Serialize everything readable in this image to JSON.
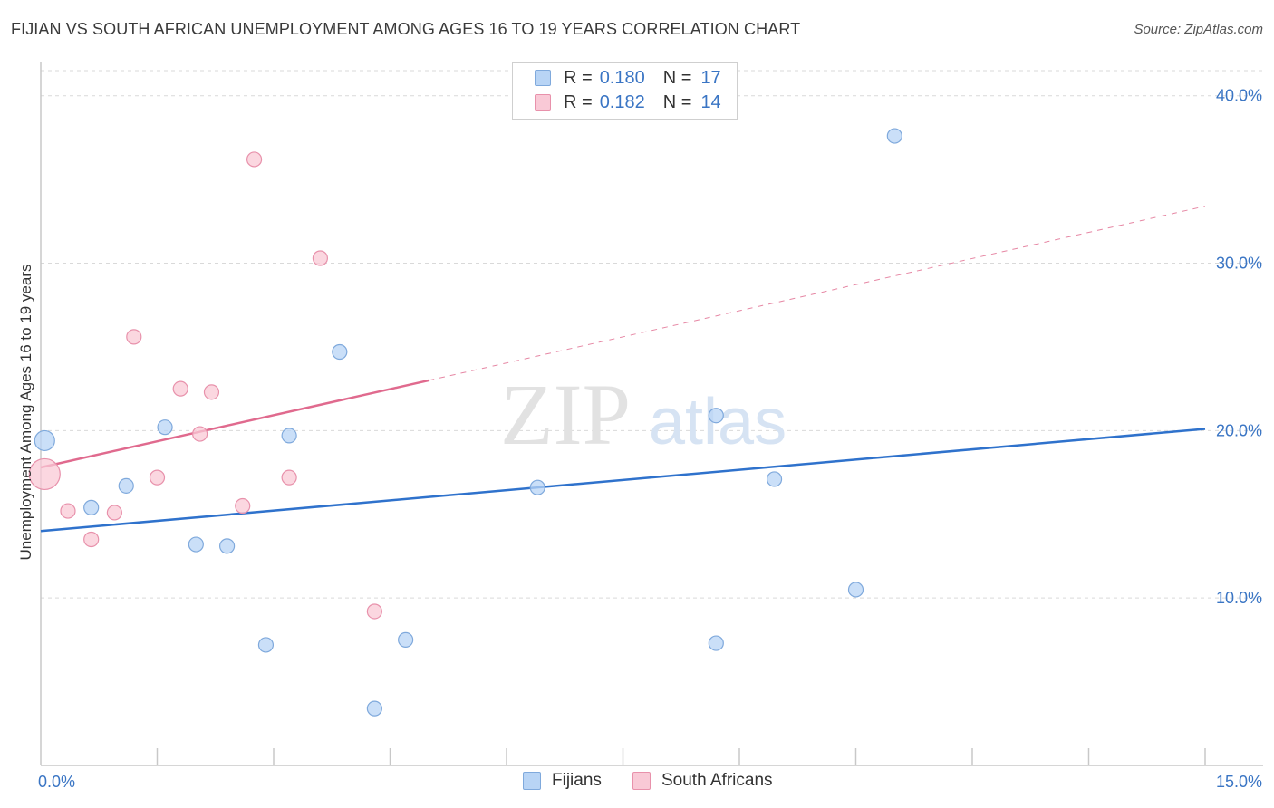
{
  "title": "FIJIAN VS SOUTH AFRICAN UNEMPLOYMENT AMONG AGES 16 TO 19 YEARS CORRELATION CHART",
  "source": "Source: ZipAtlas.com",
  "watermark": {
    "zip": "ZIP",
    "atlas": "atlas"
  },
  "legend_top": {
    "fijians": {
      "r_label": "R =",
      "r_value": "0.180",
      "n_label": "N =",
      "n_value": "17"
    },
    "south_africans": {
      "r_label": "R =",
      "r_value": "0.182",
      "n_label": "N =",
      "n_value": "14"
    }
  },
  "legend_bottom": {
    "fijians": "Fijians",
    "south_africans": "South Africans"
  },
  "colors": {
    "fijian_fill": "#b8d4f5",
    "fijian_stroke": "#7fa9dc",
    "fijian_line": "#2f72cc",
    "sa_fill": "#f9c9d6",
    "sa_stroke": "#e891ab",
    "sa_line": "#e06a8e",
    "tick_text": "#3a75c4",
    "grid": "#d9d9d9"
  },
  "chart_data": {
    "type": "scatter",
    "title": "FIJIAN VS SOUTH AFRICAN UNEMPLOYMENT AMONG AGES 16 TO 19 YEARS CORRELATION CHART",
    "xlabel": "",
    "ylabel": "Unemployment Among Ages 16 to 19 years",
    "xlim": [
      0,
      15
    ],
    "ylim": [
      0,
      41.5
    ],
    "x_tick_labels": [
      "0.0%",
      "15.0%"
    ],
    "y_ticks": [
      10,
      20,
      30,
      40
    ],
    "y_tick_labels": [
      "10.0%",
      "20.0%",
      "30.0%",
      "40.0%"
    ],
    "series": [
      {
        "name": "Fijians",
        "points": [
          {
            "x": 0.05,
            "y": 19.4,
            "size": "large"
          },
          {
            "x": 0.65,
            "y": 15.4
          },
          {
            "x": 1.1,
            "y": 16.7
          },
          {
            "x": 1.6,
            "y": 20.2
          },
          {
            "x": 2.0,
            "y": 13.2
          },
          {
            "x": 2.4,
            "y": 13.1
          },
          {
            "x": 2.9,
            "y": 7.2
          },
          {
            "x": 3.2,
            "y": 19.7
          },
          {
            "x": 3.85,
            "y": 24.7
          },
          {
            "x": 4.3,
            "y": 3.4
          },
          {
            "x": 4.7,
            "y": 7.5
          },
          {
            "x": 6.4,
            "y": 16.6
          },
          {
            "x": 8.7,
            "y": 7.3
          },
          {
            "x": 8.7,
            "y": 20.9
          },
          {
            "x": 9.45,
            "y": 17.1
          },
          {
            "x": 10.5,
            "y": 10.5
          },
          {
            "x": 11.0,
            "y": 37.6
          }
        ],
        "trend": {
          "x0": 0,
          "y0": 14.0,
          "x1": 15,
          "y1": 20.1,
          "style": "solid"
        }
      },
      {
        "name": "South Africans",
        "points": [
          {
            "x": 0.05,
            "y": 17.4,
            "size": "large"
          },
          {
            "x": 0.35,
            "y": 15.2
          },
          {
            "x": 0.65,
            "y": 13.5
          },
          {
            "x": 0.95,
            "y": 15.1
          },
          {
            "x": 1.2,
            "y": 25.6
          },
          {
            "x": 1.5,
            "y": 17.2
          },
          {
            "x": 1.8,
            "y": 22.5
          },
          {
            "x": 2.05,
            "y": 19.8
          },
          {
            "x": 2.2,
            "y": 22.3
          },
          {
            "x": 2.6,
            "y": 15.5
          },
          {
            "x": 2.75,
            "y": 36.2
          },
          {
            "x": 3.2,
            "y": 17.2
          },
          {
            "x": 3.6,
            "y": 30.3
          },
          {
            "x": 4.3,
            "y": 9.2
          }
        ],
        "trend": {
          "x0": 0,
          "y0": 17.8,
          "x1": 5.0,
          "y1": 23.0,
          "style": "solid",
          "extended_to": {
            "x": 15,
            "y": 33.4,
            "style": "dashed"
          }
        }
      }
    ]
  }
}
